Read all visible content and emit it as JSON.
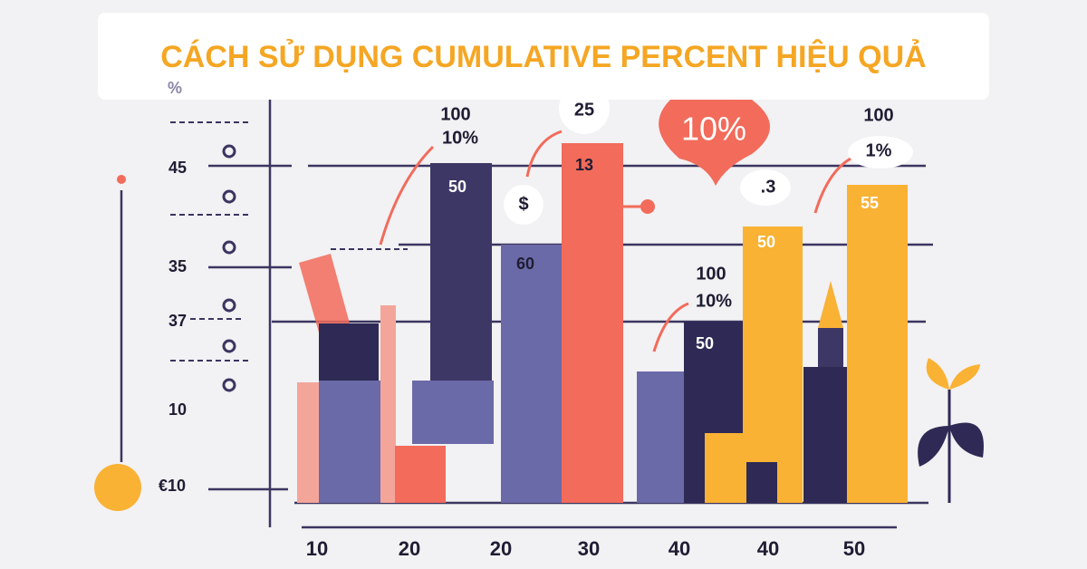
{
  "header": {
    "title": "CÁCH SỬ DỤNG CUMULATIVE PERCENT HIỆU QUẢ"
  },
  "left_labels": [
    "%",
    "45",
    "35",
    "37",
    "10",
    "€10"
  ],
  "bar_labels": [
    "50",
    "60",
    "13",
    "50",
    "50",
    "55"
  ],
  "annotations": [
    "100",
    "10%",
    "25",
    "$",
    "10%",
    ".3",
    "100",
    "1%",
    "100",
    "10%"
  ],
  "x_labels": [
    "10",
    "20",
    "20",
    "30",
    "40",
    "40",
    "50"
  ]
}
